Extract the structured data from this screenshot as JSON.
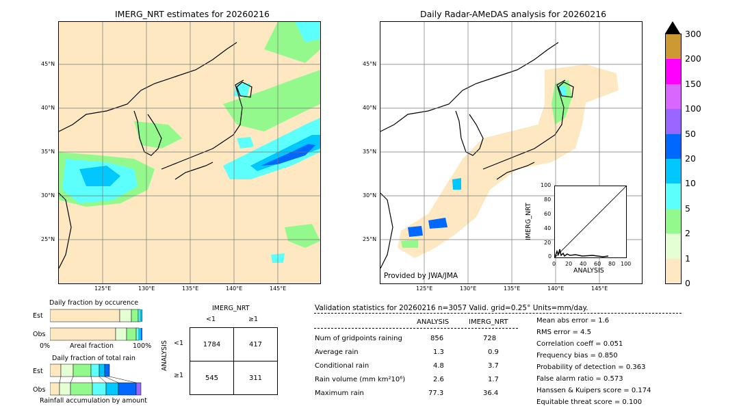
{
  "left_map": {
    "title": "IMERG_NRT estimates for 20260216",
    "lat_labels": [
      "45°N",
      "40°N",
      "35°N",
      "30°N",
      "25°N"
    ],
    "lon_labels": [
      "125°E",
      "130°E",
      "135°E",
      "140°E",
      "145°E"
    ]
  },
  "right_map": {
    "title": "Daily Radar-AMeDAS analysis for 20260216",
    "lat_labels": [
      "45°N",
      "40°N",
      "35°N",
      "30°N",
      "25°N"
    ],
    "lon_labels": [
      "125°E",
      "130°E",
      "135°E",
      "140°E",
      "145°E"
    ],
    "credit": "Provided by JWA/JMA"
  },
  "colorbar": {
    "labels": [
      "0",
      "1",
      "2",
      "5",
      "10",
      "20",
      "50",
      "100",
      "150",
      "200",
      "300"
    ],
    "colors": [
      "#fde8c2",
      "#e4ffd4",
      "#94f98c",
      "#5cfffc",
      "#00c8ff",
      "#0068ff",
      "#9966ff",
      "#d966ff",
      "#ff00ff",
      "#cc9933"
    ],
    "extend_color": "#000000"
  },
  "inset_scatter": {
    "xlabel": "ANALYSIS",
    "ylabel": "IMERG_NRT",
    "ticks": [
      "0",
      "20",
      "40",
      "60",
      "80",
      "100"
    ]
  },
  "occurrence": {
    "title": "Daily fraction by occurence",
    "rows": [
      "Est",
      "Obs"
    ],
    "axis_left": "0%",
    "axis_mid": "Areal fraction",
    "axis_right": "100%"
  },
  "total_rain": {
    "title": "Daily fraction of total rain",
    "rows": [
      "Est",
      "Obs"
    ],
    "caption": "Rainfall accumulation by amount"
  },
  "contingency": {
    "col_title": "IMERG_NRT",
    "col_labels": [
      "<1",
      "≥1"
    ],
    "row_title": "ANALYSIS",
    "row_labels": [
      "<1",
      "≥1"
    ],
    "cells": [
      [
        "1784",
        "417"
      ],
      [
        "545",
        "311"
      ]
    ]
  },
  "validation": {
    "header": "Validation statistics for 20260216  n=3057 Valid. grid=0.25° Units=mm/day.",
    "col_analysis": "ANALYSIS",
    "col_imerg": "IMERG_NRT",
    "rows": [
      {
        "label": "Num of gridpoints raining",
        "analysis": "856",
        "imerg": "728"
      },
      {
        "label": "Average rain",
        "analysis": "1.3",
        "imerg": "0.9"
      },
      {
        "label": "Conditional rain",
        "analysis": "4.8",
        "imerg": "3.7"
      },
      {
        "label": "Rain volume (mm km²10⁶)",
        "analysis": "2.6",
        "imerg": "1.7"
      },
      {
        "label": "Maximum rain",
        "analysis": "77.3",
        "imerg": "36.4"
      }
    ],
    "scores": [
      "Mean abs error =    1.6",
      "RMS error =    4.5",
      "Correlation coeff =  0.051",
      "Frequency bias =  0.850",
      "Probability of detection =  0.363",
      "False alarm ratio =  0.573",
      "Hanssen & Kuipers score =  0.174",
      "Equitable threat score =  0.100"
    ]
  }
}
